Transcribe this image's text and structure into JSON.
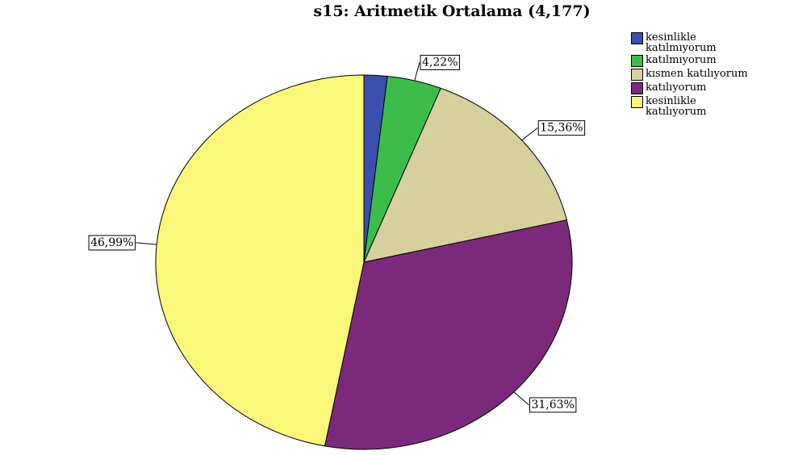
{
  "chart_data": {
    "type": "pie",
    "title": "s15: Aritmetik Ortalama (4,177)",
    "categories": [
      "kesinlikle katılmıyorum",
      "katılmıyorum",
      "kısmen katılıyorum",
      "katılıyorum",
      "kesinlikle katılıyorum"
    ],
    "values": [
      1.8,
      4.22,
      15.36,
      31.63,
      46.99
    ],
    "value_labels": [
      null,
      "4,22%",
      "15,36%",
      "31,63%",
      "46,99%"
    ],
    "colors": [
      "#3a4fae",
      "#3cbd4a",
      "#d6d09c",
      "#7b2a7b",
      "#fbf77a"
    ],
    "legend": "top-right"
  }
}
